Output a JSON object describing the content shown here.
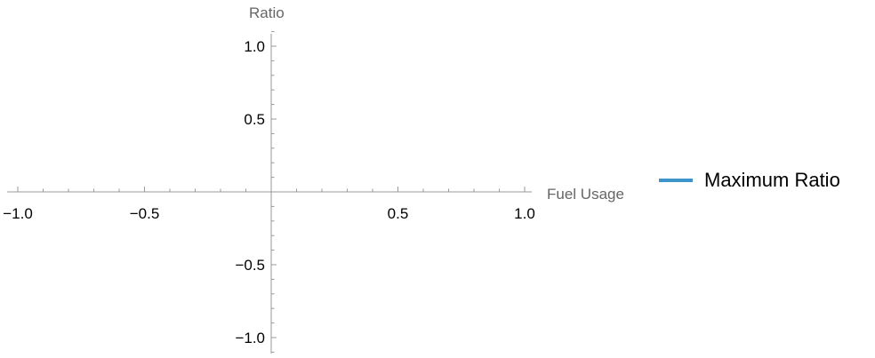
{
  "chart_data": {
    "type": "line",
    "xlabel": "Fuel Usage",
    "ylabel": "Ratio",
    "xlim": [
      -1.0,
      1.0
    ],
    "ylim": [
      -1.0,
      1.0
    ],
    "x_ticks": [
      {
        "value": -1.0,
        "label": "−1.0"
      },
      {
        "value": -0.5,
        "label": "−0.5"
      },
      {
        "value": 0.5,
        "label": "0.5"
      },
      {
        "value": 1.0,
        "label": "1.0"
      }
    ],
    "y_ticks": [
      {
        "value": 1.0,
        "label": "1.0"
      },
      {
        "value": 0.5,
        "label": "0.5"
      },
      {
        "value": -0.5,
        "label": "−0.5"
      },
      {
        "value": -1.0,
        "label": "−1.0"
      }
    ],
    "series": [
      {
        "name": "Maximum Ratio",
        "color": "#3d95c9",
        "x": [],
        "y": []
      }
    ],
    "legend_position": "right",
    "grid": false
  }
}
